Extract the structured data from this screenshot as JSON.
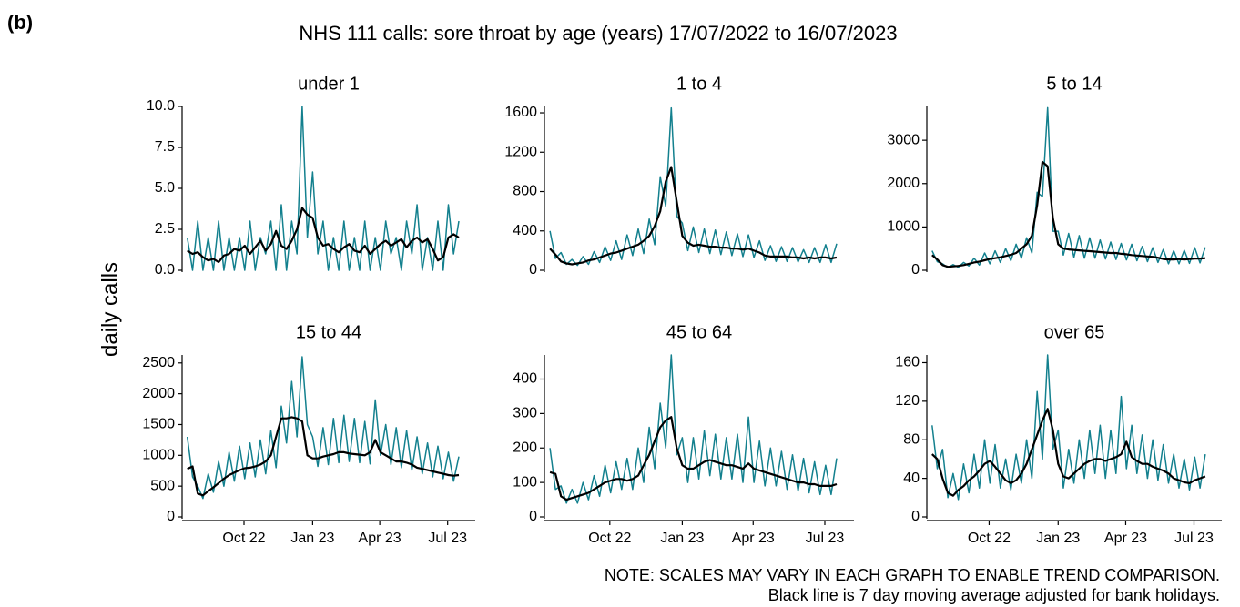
{
  "chart_data": {
    "type": "line",
    "label": "(b)",
    "title": "NHS 111 calls: sore throat by age (years) 17/07/2022 to 16/07/2023",
    "ylabel": "daily calls",
    "notes": [
      "NOTE: SCALES MAY VARY IN EACH GRAPH TO ENABLE TREND COMPARISON.",
      "Black line is 7 day moving average adjusted for bank holidays."
    ],
    "x": [
      0,
      7,
      14,
      21,
      28,
      35,
      42,
      49,
      56,
      63,
      70,
      77,
      84,
      91,
      98,
      105,
      112,
      119,
      126,
      133,
      140,
      147,
      154,
      161,
      168,
      175,
      182,
      189,
      196,
      203,
      210,
      217,
      224,
      231,
      238,
      245,
      252,
      259,
      266,
      273,
      280,
      287,
      294,
      301,
      308,
      315,
      322,
      329,
      336,
      343,
      350,
      357,
      364
    ],
    "xlim": [
      -7,
      386
    ],
    "xticks": [
      {
        "value": 76,
        "label": "Oct 22"
      },
      {
        "value": 168,
        "label": "Jan 23"
      },
      {
        "value": 258,
        "label": "Apr 23"
      },
      {
        "value": 349,
        "label": "Jul 23"
      }
    ],
    "panels": [
      {
        "title": "under 1",
        "ylim": [
          0,
          10
        ],
        "yticks": [
          {
            "value": 0,
            "label": "0.0"
          },
          {
            "value": 2.5,
            "label": "2.5"
          },
          {
            "value": 5,
            "label": "5.0"
          },
          {
            "value": 7.5,
            "label": "7.5"
          },
          {
            "value": 10,
            "label": "10.0"
          }
        ],
        "series": [
          {
            "color": "#13808e",
            "values": [
              2,
              0,
              3,
              0,
              2,
              0,
              3,
              0,
              2,
              0,
              2,
              0,
              3,
              0,
              2,
              1,
              3,
              0,
              4,
              0,
              3,
              1,
              10,
              2,
              6,
              1,
              3,
              0,
              2,
              0,
              3,
              0,
              2,
              0,
              3,
              0,
              2,
              0,
              3,
              1,
              2,
              0,
              3,
              1,
              4,
              0,
              2,
              0,
              3,
              0,
              4,
              1,
              3
            ]
          },
          {
            "color": "#000000",
            "values": [
              1.2,
              1.0,
              1.1,
              0.8,
              0.6,
              0.7,
              0.5,
              0.9,
              1.0,
              1.3,
              1.2,
              1.5,
              1.0,
              1.4,
              1.8,
              1.2,
              1.6,
              2.4,
              1.5,
              1.3,
              1.8,
              2.5,
              3.8,
              3.4,
              3.2,
              2.0,
              1.5,
              1.6,
              1.3,
              1.1,
              1.4,
              1.6,
              1.2,
              1.1,
              1.5,
              1.0,
              1.3,
              1.6,
              1.8,
              1.5,
              1.7,
              1.9,
              1.4,
              1.8,
              2.0,
              1.7,
              1.9,
              1.3,
              0.6,
              0.8,
              2.0,
              2.2,
              2.0
            ]
          }
        ]
      },
      {
        "title": "1 to 4",
        "ylim": [
          0,
          1665
        ],
        "yticks": [
          0,
          400,
          800,
          1200,
          1600
        ],
        "series": [
          {
            "color": "#13808e",
            "values": [
              400,
              120,
              180,
              60,
              110,
              50,
              140,
              60,
              190,
              80,
              240,
              100,
              300,
              110,
              360,
              150,
              420,
              170,
              520,
              260,
              950,
              650,
              1650,
              550,
              480,
              200,
              440,
              180,
              420,
              170,
              410,
              160,
              390,
              150,
              370,
              140,
              360,
              130,
              300,
              100,
              250,
              90,
              240,
              90,
              230,
              85,
              210,
              80,
              230,
              80,
              260,
              80,
              270
            ]
          },
          {
            "color": "#000000",
            "values": [
              220,
              160,
              90,
              70,
              60,
              70,
              80,
              100,
              110,
              130,
              150,
              170,
              180,
              200,
              220,
              240,
              260,
              300,
              350,
              450,
              600,
              900,
              1050,
              700,
              350,
              280,
              250,
              260,
              250,
              240,
              240,
              230,
              230,
              220,
              220,
              210,
              220,
              200,
              180,
              150,
              140,
              140,
              140,
              140,
              130,
              130,
              120,
              130,
              120,
              130,
              130,
              120,
              130
            ]
          }
        ]
      },
      {
        "title": "5 to 14",
        "ylim": [
          0,
          3780
        ],
        "yticks": [
          0,
          1000,
          2000,
          3000
        ],
        "series": [
          {
            "color": "#13808e",
            "values": [
              450,
              200,
              150,
              60,
              130,
              70,
              180,
              100,
              280,
              120,
              400,
              150,
              450,
              180,
              500,
              220,
              600,
              280,
              750,
              400,
              1800,
              1700,
              3750,
              900,
              900,
              350,
              850,
              300,
              800,
              280,
              750,
              280,
              700,
              260,
              650,
              250,
              620,
              240,
              600,
              220,
              550,
              200,
              520,
              180,
              480,
              150,
              450,
              150,
              460,
              160,
              520,
              170,
              530
            ]
          },
          {
            "color": "#000000",
            "values": [
              350,
              250,
              120,
              80,
              90,
              100,
              120,
              150,
              180,
              200,
              230,
              260,
              280,
              300,
              330,
              360,
              400,
              500,
              600,
              800,
              1500,
              2500,
              2400,
              1200,
              600,
              500,
              480,
              470,
              460,
              450,
              440,
              430,
              420,
              410,
              400,
              400,
              380,
              370,
              350,
              340,
              330,
              320,
              310,
              290,
              260,
              250,
              250,
              260,
              250,
              260,
              270,
              270,
              280
            ]
          }
        ]
      },
      {
        "title": "15 to 44",
        "ylim": [
          0,
          2630
        ],
        "yticks": [
          0,
          500,
          1000,
          1500,
          2000,
          2500
        ],
        "series": [
          {
            "color": "#13808e",
            "values": [
              1300,
              650,
              500,
              300,
              700,
              400,
              900,
              500,
              1050,
              580,
              1150,
              620,
              1200,
              650,
              1250,
              700,
              1400,
              800,
              1800,
              1200,
              2200,
              1300,
              2600,
              1500,
              1300,
              820,
              1450,
              850,
              1600,
              880,
              1650,
              900,
              1600,
              880,
              1550,
              860,
              1900,
              1000,
              1500,
              850,
              1450,
              800,
              1400,
              760,
              1300,
              700,
              1200,
              650,
              1150,
              620,
              1050,
              580,
              980
            ]
          },
          {
            "color": "#000000",
            "values": [
              780,
              820,
              380,
              350,
              420,
              480,
              550,
              620,
              680,
              720,
              760,
              790,
              800,
              820,
              850,
              900,
              1000,
              1300,
              1600,
              1600,
              1620,
              1600,
              1550,
              1000,
              950,
              950,
              980,
              1000,
              1020,
              1050,
              1050,
              1030,
              1020,
              1010,
              1000,
              1050,
              1250,
              1050,
              1000,
              950,
              900,
              900,
              880,
              850,
              800,
              780,
              760,
              740,
              720,
              700,
              680,
              670,
              680
            ]
          }
        ]
      },
      {
        "title": "45 to 64",
        "ylim": [
          0,
          470
        ],
        "yticks": [
          0,
          100,
          200,
          300,
          400
        ],
        "series": [
          {
            "color": "#13808e",
            "values": [
              200,
              80,
              90,
              40,
              80,
              40,
              100,
              50,
              120,
              60,
              150,
              70,
              160,
              80,
              170,
              80,
              200,
              100,
              260,
              140,
              330,
              200,
              470,
              180,
              230,
              100,
              230,
              110,
              250,
              120,
              240,
              110,
              230,
              110,
              240,
              100,
              290,
              100,
              220,
              90,
              200,
              90,
              190,
              80,
              180,
              75,
              170,
              70,
              160,
              65,
              150,
              65,
              170
            ]
          },
          {
            "color": "#000000",
            "values": [
              130,
              125,
              60,
              50,
              55,
              60,
              65,
              70,
              80,
              90,
              100,
              105,
              110,
              110,
              105,
              110,
              120,
              150,
              180,
              220,
              260,
              280,
              290,
              200,
              150,
              140,
              140,
              150,
              160,
              165,
              160,
              155,
              150,
              150,
              145,
              140,
              155,
              140,
              135,
              130,
              125,
              120,
              115,
              110,
              105,
              100,
              100,
              95,
              95,
              90,
              90,
              90,
              95
            ]
          }
        ]
      },
      {
        "title": "over 65",
        "ylim": [
          0,
          168
        ],
        "yticks": [
          0,
          40,
          80,
          120,
          160
        ],
        "series": [
          {
            "color": "#13808e",
            "values": [
              95,
              50,
              70,
              20,
              45,
              18,
              55,
              25,
              65,
              30,
              80,
              35,
              75,
              30,
              60,
              28,
              65,
              35,
              80,
              40,
              130,
              60,
              168,
              70,
              90,
              30,
              70,
              35,
              80,
              40,
              90,
              45,
              95,
              40,
              90,
              45,
              125,
              50,
              95,
              45,
              85,
              40,
              80,
              38,
              75,
              35,
              65,
              30,
              60,
              28,
              62,
              30,
              65
            ]
          },
          {
            "color": "#000000",
            "values": [
              65,
              60,
              40,
              25,
              22,
              28,
              32,
              38,
              42,
              48,
              55,
              58,
              52,
              45,
              38,
              35,
              38,
              45,
              55,
              70,
              85,
              100,
              112,
              90,
              55,
              42,
              40,
              45,
              50,
              55,
              58,
              60,
              60,
              58,
              60,
              62,
              65,
              78,
              62,
              58,
              55,
              55,
              52,
              50,
              48,
              45,
              40,
              38,
              36,
              35,
              38,
              40,
              42
            ]
          }
        ]
      }
    ]
  }
}
